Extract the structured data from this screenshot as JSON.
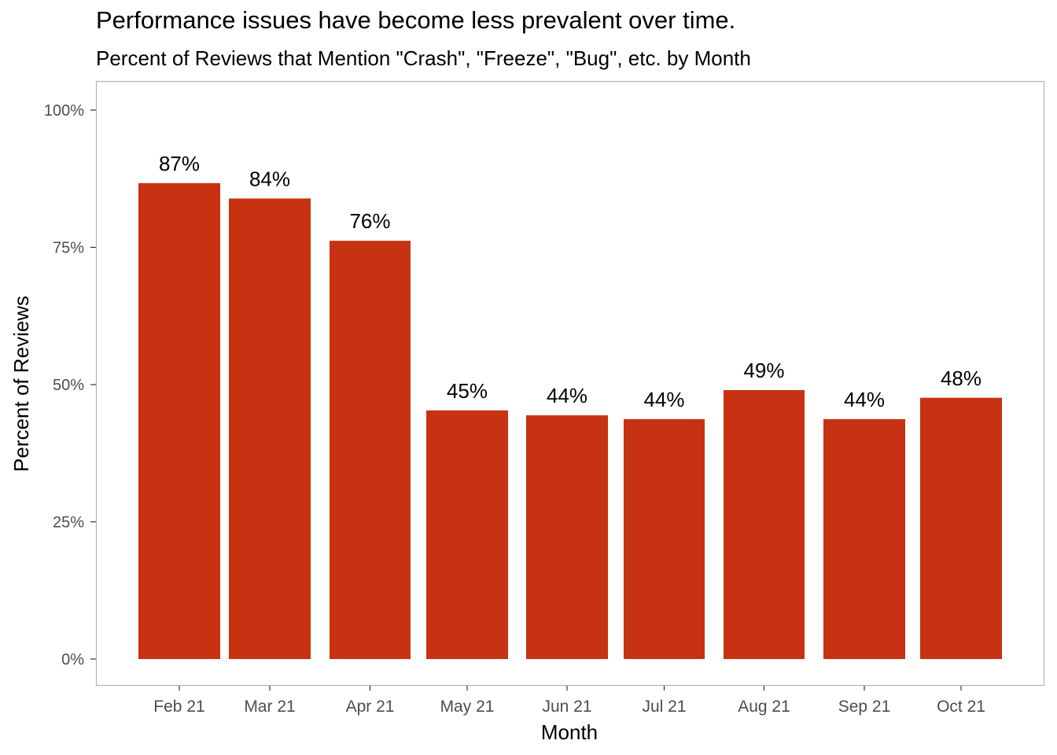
{
  "chart_data": {
    "type": "bar",
    "title": "Performance issues have become less prevalent over time.",
    "subtitle": "Percent of Reviews that Mention \"Crash\", \"Freeze\", \"Bug\", etc. by Month",
    "xlabel": "Month",
    "ylabel": "Percent of Reviews",
    "categories": [
      "Feb 21",
      "Mar 21",
      "Apr 21",
      "May 21",
      "Jun 21",
      "Jul 21",
      "Aug 21",
      "Sep 21",
      "Oct 21"
    ],
    "values": [
      86.7,
      83.9,
      76.2,
      45.3,
      44.4,
      43.7,
      49.0,
      43.7,
      47.6
    ],
    "data_labels": [
      "87%",
      "84%",
      "76%",
      "45%",
      "44%",
      "44%",
      "49%",
      "44%",
      "48%"
    ],
    "ylim": [
      0,
      100
    ],
    "yticks": [
      0,
      25,
      50,
      75,
      100
    ],
    "ytick_labels": [
      "0%",
      "25%",
      "50%",
      "75%",
      "100%"
    ],
    "bar_color": "#c73212",
    "panel_border_color": "#b3b3b3",
    "grid": false,
    "legend": "none"
  }
}
